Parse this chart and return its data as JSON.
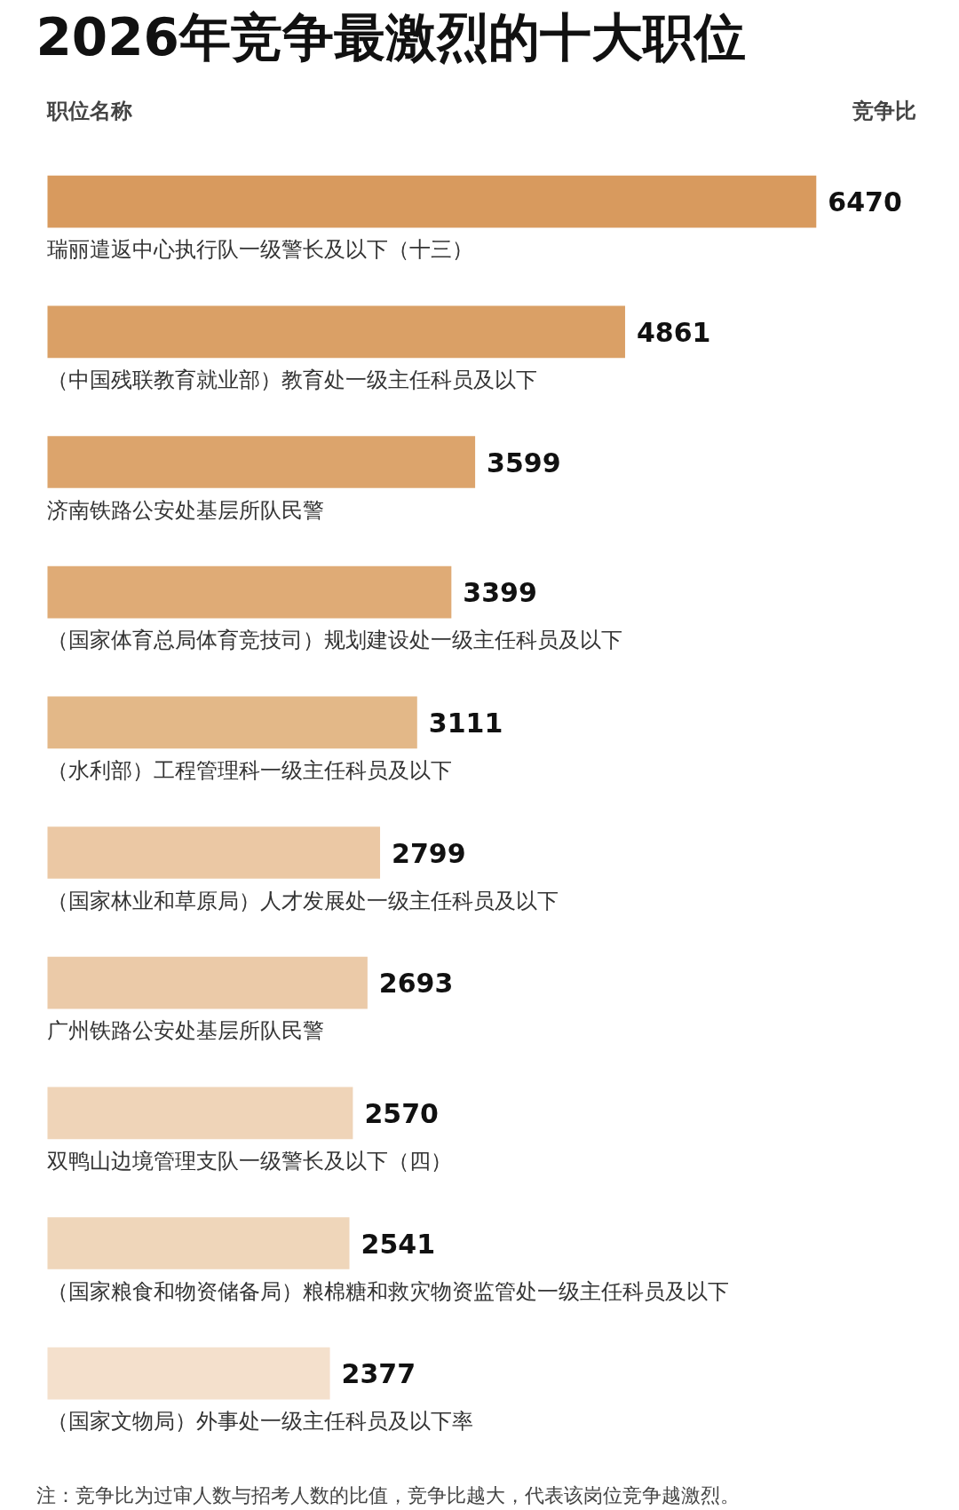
{
  "chart_data": {
    "type": "bar",
    "orientation": "horizontal",
    "title": "2026年竞争最激烈的十大职位",
    "categories": [
      "瑞丽遣返中心执行队一级警长及以下（十三）",
      "（中国残联教育就业部）教育处一级主任科员及以下",
      "济南铁路公安处基层所队民警",
      "（国家体育总局体育竞技司）规划建设处一级主任科员及以下",
      "（水利部）工程管理科一级主任科员及以下",
      "（国家林业和草原局）人才发展处一级主任科员及以下",
      "广州铁路公安处基层所队民警",
      "双鸭山边境管理支队一级警长及以下（四）",
      "（国家粮食和物资储备局）粮棉糖和救灾物资监管处一级主任科员及以下",
      "（国家文物局）外事处一级主任科员及以下率"
    ],
    "values": [
      6470,
      4861,
      3599,
      3399,
      3111,
      2799,
      2693,
      2570,
      2541,
      2377
    ],
    "colors": [
      "#d89a5e",
      "#daa066",
      "#dca46c",
      "#dfab76",
      "#e3b888",
      "#ebc8a4",
      "#ebcaa8",
      "#efd4b8",
      "#efd6ba",
      "#f4e0cc"
    ],
    "data_labels": true,
    "grid": false,
    "annotations": [
      "职位名称",
      "竞争比",
      "注：竞争比为过审人数与招考人数的比值，竞争比越大，代表该岗位竞争越激烈。"
    ]
  }
}
